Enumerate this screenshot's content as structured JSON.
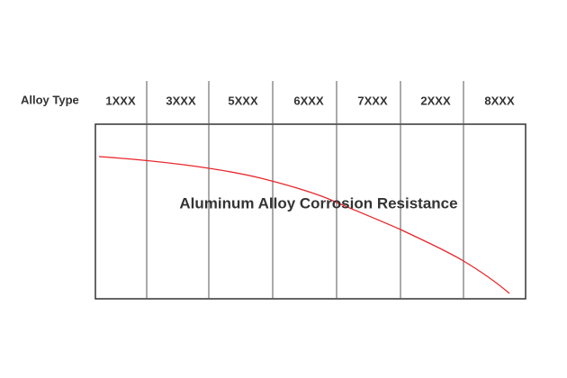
{
  "header": {
    "row_label": "Alloy Type",
    "columns": [
      "1XXX",
      "3XXX",
      "5XXX",
      "6XXX",
      "7XXX",
      "2XXX",
      "8XXX"
    ]
  },
  "diagram": {
    "title": "Aluminum Alloy Corrosion Resistance"
  }
}
